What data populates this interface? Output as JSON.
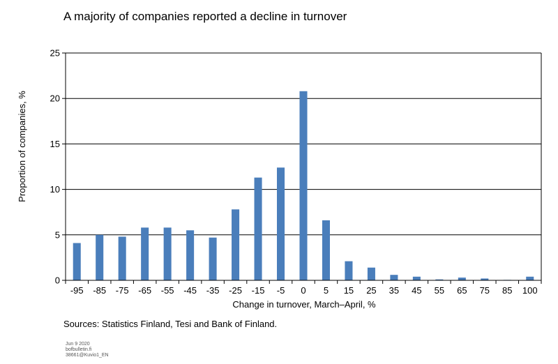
{
  "title": "A majority of companies reported a decline in turnover",
  "source": "Sources: Statistics Finland, Tesi and Bank of Finland.",
  "footer": {
    "date": "Jun 9 2020",
    "site": "bofbulletin.fi",
    "code": "38661@Kuvio1_EN"
  },
  "chart_data": {
    "type": "bar",
    "title": "A majority of companies reported a decline in turnover",
    "xlabel": "Change in turnover, March–April, %",
    "ylabel": "Proportion of companies, %",
    "categories": [
      "-95",
      "-85",
      "-75",
      "-65",
      "-55",
      "-45",
      "-35",
      "-25",
      "-15",
      "-5",
      "0",
      "5",
      "15",
      "25",
      "35",
      "45",
      "55",
      "65",
      "75",
      "85",
      "100"
    ],
    "values": [
      4.1,
      5.0,
      4.8,
      5.8,
      5.8,
      5.5,
      4.7,
      7.8,
      11.3,
      12.4,
      20.8,
      6.6,
      2.1,
      1.4,
      0.6,
      0.4,
      0.1,
      0.3,
      0.2,
      0.05,
      0.4
    ],
    "ylim": [
      0,
      25
    ],
    "yticks": [
      0,
      5,
      10,
      15,
      20,
      25
    ],
    "grid": true,
    "bar_color": "#4a7ebb"
  }
}
